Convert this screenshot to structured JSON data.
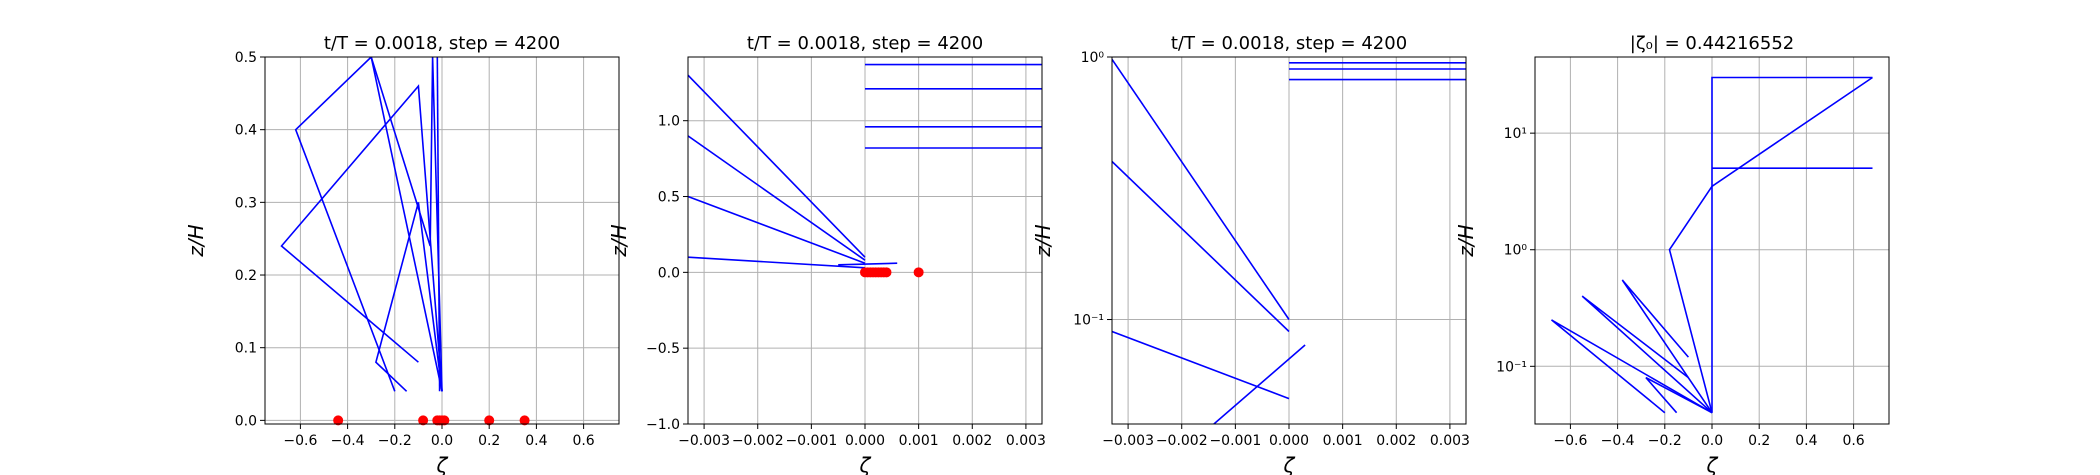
{
  "chart_data": [
    {
      "type": "line",
      "title": "t/T = 0.0018, step = 4200",
      "xlabel": "ζ",
      "ylabel": "z/H",
      "xlim": [
        -0.75,
        0.75
      ],
      "ylim": [
        -0.005,
        0.5
      ],
      "yscale": "linear",
      "grid": true,
      "xticks": [
        -0.6,
        -0.4,
        -0.2,
        0.0,
        0.2,
        0.4,
        0.6
      ],
      "xtick_labels": [
        "−0.6",
        "−0.4",
        "−0.2",
        "0.0",
        "0.2",
        "0.4",
        "0.6"
      ],
      "yticks": [
        0.0,
        0.1,
        0.2,
        0.3,
        0.4,
        0.5
      ],
      "ytick_labels": [
        "0.0",
        "0.1",
        "0.2",
        "0.3",
        "0.4",
        "0.5"
      ],
      "line_color": "#0000ff",
      "marker_color": "#ff0000",
      "series": [
        {
          "values": [
            [
              -0.15,
              0.04
            ],
            [
              -0.28,
              0.08
            ],
            [
              -0.1,
              0.3
            ],
            [
              0,
              0.04
            ]
          ]
        },
        {
          "values": [
            [
              -0.2,
              0.04
            ],
            [
              -0.62,
              0.4
            ],
            [
              -0.3,
              0.5
            ],
            [
              0,
              0.04
            ]
          ]
        },
        {
          "values": [
            [
              -0.1,
              0.08
            ],
            [
              -0.68,
              0.24
            ],
            [
              -0.1,
              0.46
            ],
            [
              0,
              0.04
            ]
          ]
        },
        {
          "values": [
            [
              -0.3,
              0.5
            ],
            [
              -0.05,
              0.24
            ],
            [
              -0.04,
              0.5
            ],
            [
              0,
              0.04
            ]
          ]
        },
        {
          "values": [
            [
              -0.02,
              0.5
            ],
            [
              -0.01,
              0.04
            ]
          ]
        }
      ],
      "markers_y": 0.0,
      "markers_x": [
        -0.44,
        -0.08,
        -0.02,
        -0.01,
        0.0,
        0.01,
        0.2,
        0.35
      ]
    },
    {
      "type": "line",
      "title": "t/T = 0.0018, step = 4200",
      "xlabel": "ζ",
      "ylabel": "z/H",
      "xlim": [
        -0.0033,
        0.0033
      ],
      "ylim": [
        -1.0,
        1.42
      ],
      "yscale": "linear",
      "grid": true,
      "xticks": [
        -0.003,
        -0.002,
        -0.001,
        0.0,
        0.001,
        0.002,
        0.003
      ],
      "xtick_labels": [
        "−0.003",
        "−0.002",
        "−0.001",
        "0.000",
        "0.001",
        "0.002",
        "0.003"
      ],
      "yticks": [
        -1.0,
        -0.5,
        0.0,
        0.5,
        1.0
      ],
      "ytick_labels": [
        "−1.0",
        "−0.5",
        "0.0",
        "0.5",
        "1.0"
      ],
      "line_color": "#0000ff",
      "marker_color": "#ff0000",
      "series": [
        {
          "values": [
            [
              -0.0033,
              0.1
            ],
            [
              0.0,
              0.03
            ]
          ]
        },
        {
          "values": [
            [
              -0.0033,
              0.5
            ],
            [
              0.0,
              0.06
            ]
          ]
        },
        {
          "values": [
            [
              -0.0033,
              0.9
            ],
            [
              0.0,
              0.08
            ]
          ]
        },
        {
          "values": [
            [
              -0.0033,
              1.3
            ],
            [
              0.0,
              0.1
            ]
          ]
        },
        {
          "values": [
            [
              0.0,
              1.37
            ],
            [
              0.0033,
              1.37
            ]
          ]
        },
        {
          "values": [
            [
              0.0,
              1.21
            ],
            [
              0.0033,
              1.21
            ]
          ]
        },
        {
          "values": [
            [
              0.0,
              0.96
            ],
            [
              0.0033,
              0.96
            ]
          ]
        },
        {
          "values": [
            [
              0.0,
              0.82
            ],
            [
              0.0033,
              0.82
            ]
          ]
        },
        {
          "values": [
            [
              -0.0005,
              0.05
            ],
            [
              0.0006,
              0.06
            ]
          ]
        }
      ],
      "markers_y": 0.0,
      "markers_x": [
        0.0,
        5e-05,
        0.0001,
        0.00015,
        0.0002,
        0.00025,
        0.0003,
        0.00035,
        0.0004,
        0.001
      ]
    },
    {
      "type": "line",
      "title": "t/T = 0.0018, step = 4200",
      "xlabel": "ζ",
      "ylabel": "z/H",
      "xlim": [
        -0.0033,
        0.0033
      ],
      "ylim": [
        0.04,
        1.0
      ],
      "yscale": "log",
      "grid": true,
      "xticks": [
        -0.003,
        -0.002,
        -0.001,
        0.0,
        0.001,
        0.002,
        0.003
      ],
      "xtick_labels": [
        "−0.003",
        "−0.002",
        "−0.001",
        "0.000",
        "0.001",
        "0.002",
        "0.003"
      ],
      "yticks": [
        0.1,
        1.0
      ],
      "ytick_labels": [
        "10⁻¹",
        "10⁰"
      ],
      "line_color": "#0000ff",
      "series": [
        {
          "values": [
            [
              -0.0033,
              0.09
            ],
            [
              0.0,
              0.05
            ]
          ]
        },
        {
          "values": [
            [
              -0.0033,
              0.4
            ],
            [
              0.0,
              0.09
            ]
          ]
        },
        {
          "values": [
            [
              -0.0033,
              0.98
            ],
            [
              0.0,
              0.1
            ]
          ]
        },
        {
          "values": [
            [
              0.0,
              0.95
            ],
            [
              0.0033,
              0.95
            ]
          ]
        },
        {
          "values": [
            [
              0.0,
              0.9
            ],
            [
              0.0033,
              0.9
            ]
          ]
        },
        {
          "values": [
            [
              0.0,
              0.82
            ],
            [
              0.0033,
              0.82
            ]
          ]
        },
        {
          "values": [
            [
              -0.0014,
              0.04
            ],
            [
              0.0003,
              0.08
            ]
          ]
        }
      ]
    },
    {
      "type": "line",
      "title": "|ζ₀| = 0.44216552",
      "xlabel": "ζ",
      "ylabel": "z/H",
      "xlim": [
        -0.75,
        0.75
      ],
      "ylim": [
        0.032,
        45
      ],
      "yscale": "log",
      "grid": true,
      "xticks": [
        -0.6,
        -0.4,
        -0.2,
        0.0,
        0.2,
        0.4,
        0.6
      ],
      "xtick_labels": [
        "−0.6",
        "−0.4",
        "−0.2",
        "0.0",
        "0.2",
        "0.4",
        "0.6"
      ],
      "yticks": [
        0.1,
        1.0,
        10.0
      ],
      "ytick_labels": [
        "10⁻¹",
        "10⁰",
        "10¹"
      ],
      "line_color": "#0000ff",
      "series": [
        {
          "values": [
            [
              -0.2,
              0.04
            ],
            [
              -0.68,
              0.25
            ],
            [
              0,
              0.04
            ]
          ]
        },
        {
          "values": [
            [
              -0.15,
              0.04
            ],
            [
              -0.28,
              0.08
            ],
            [
              0,
              0.04
            ]
          ]
        },
        {
          "values": [
            [
              -0.1,
              0.08
            ],
            [
              -0.55,
              0.4
            ],
            [
              0,
              0.04
            ]
          ]
        },
        {
          "values": [
            [
              -0.1,
              0.12
            ],
            [
              -0.38,
              0.55
            ],
            [
              0,
              0.04
            ]
          ]
        },
        {
          "values": [
            [
              0,
              0.04
            ],
            [
              -0.18,
              1.0
            ],
            [
              0.0,
              3.5
            ],
            [
              0.68,
              30
            ]
          ]
        },
        {
          "values": [
            [
              0,
              0.04
            ],
            [
              0.0,
              30
            ],
            [
              0.68,
              30
            ]
          ]
        },
        {
          "values": [
            [
              0,
              5
            ],
            [
              0.68,
              5
            ]
          ]
        }
      ]
    }
  ]
}
